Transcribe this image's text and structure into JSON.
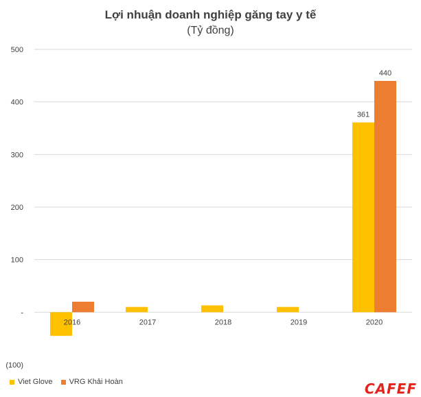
{
  "chart_data": {
    "type": "bar",
    "title": "Lợi nhuận doanh nghiệp găng tay y tế",
    "subtitle": "(Tỷ đồng)",
    "categories": [
      "2016",
      "2017",
      "2018",
      "2019",
      "2020"
    ],
    "series": [
      {
        "name": "Viet Glove",
        "color": "#FFC000",
        "values": [
          -45,
          10,
          13,
          10,
          361
        ]
      },
      {
        "name": "VRG Khải Hoàn",
        "color": "#ED7D31",
        "values": [
          20,
          0,
          0,
          0,
          440
        ]
      }
    ],
    "data_labels": [
      {
        "series": 0,
        "category": "2020",
        "text": "361"
      },
      {
        "series": 1,
        "category": "2020",
        "text": "440"
      }
    ],
    "yticks": [
      {
        "value": 500,
        "label": "500"
      },
      {
        "value": 400,
        "label": "400"
      },
      {
        "value": 300,
        "label": "300"
      },
      {
        "value": 200,
        "label": "200"
      },
      {
        "value": 100,
        "label": "100"
      },
      {
        "value": 0,
        "label": "-"
      },
      {
        "value": -100,
        "label": "(100)"
      }
    ],
    "ylim": [
      -100,
      500
    ],
    "grid": true,
    "legend": "bottom-left"
  },
  "logo_text": "CAFEF"
}
